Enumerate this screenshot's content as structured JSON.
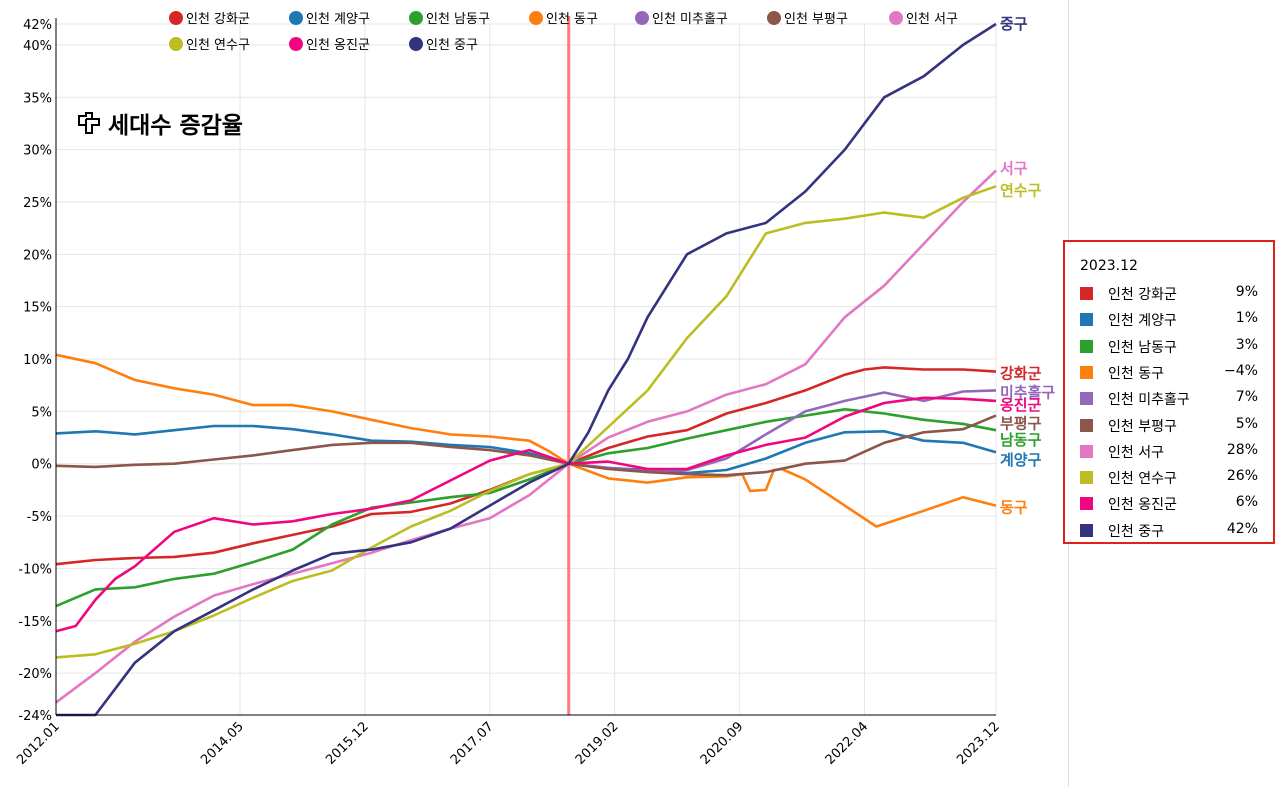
{
  "title": "세대수 증감율",
  "tooltip": {
    "date": "2023.12",
    "rows": [
      {
        "name": "인천 강화군",
        "value": "9%",
        "color": "#d62728"
      },
      {
        "name": "인천 계양구",
        "value": "1%",
        "color": "#1f77b4"
      },
      {
        "name": "인천 남동구",
        "value": "3%",
        "color": "#2ca02c"
      },
      {
        "name": "인천 동구",
        "value": "−4%",
        "color": "#ff7f0e"
      },
      {
        "name": "인천 미추홀구",
        "value": "7%",
        "color": "#9467bd"
      },
      {
        "name": "인천 부평구",
        "value": "5%",
        "color": "#8c564b"
      },
      {
        "name": "인천 서구",
        "value": "28%",
        "color": "#e377c2"
      },
      {
        "name": "인천 연수구",
        "value": "26%",
        "color": "#bcbd22"
      },
      {
        "name": "인천 옹진군",
        "value": "6%",
        "color": "#f0067f"
      },
      {
        "name": "인천 중구",
        "value": "42%",
        "color": "#333380"
      }
    ]
  },
  "chart_data": {
    "type": "line",
    "title": "세대수 증감율",
    "xlabel": "",
    "ylabel": "",
    "x_range": [
      2012.0,
      2023.917
    ],
    "ylim": [
      -24,
      42
    ],
    "grid": true,
    "reference_line": {
      "x": 2018.5,
      "color": "#ff7b7b"
    },
    "y_ticks": [
      -24,
      -20,
      -15,
      -10,
      -5,
      0,
      5,
      10,
      15,
      20,
      25,
      30,
      35,
      40,
      42
    ],
    "y_tick_labels": [
      "-24%",
      "-20%",
      "-15%",
      "-10%",
      "-5%",
      "0%",
      "5%",
      "10%",
      "15%",
      "20%",
      "25%",
      "30%",
      "35%",
      "40%",
      "42%"
    ],
    "x_ticks": [
      2012.0,
      2014.333,
      2015.917,
      2017.5,
      2019.083,
      2020.667,
      2022.25,
      2023.917
    ],
    "x_tick_labels": [
      "2012.01",
      "2014.05",
      "2015.12",
      "2017.07",
      "2019.02",
      "2020.09",
      "2022.04",
      "2023.12"
    ],
    "legend_position": "top",
    "series": [
      {
        "name": "인천 강화군",
        "label": "강화군",
        "color": "#d62728",
        "x": [
          2012.0,
          2012.5,
          2013.0,
          2013.5,
          2014.0,
          2014.5,
          2015.0,
          2015.5,
          2016.0,
          2016.5,
          2017.0,
          2017.5,
          2018.0,
          2018.5,
          2019.0,
          2019.5,
          2020.0,
          2020.5,
          2021.0,
          2021.5,
          2022.0,
          2022.25,
          2022.5,
          2023.0,
          2023.5,
          2023.917
        ],
        "y": [
          -9.6,
          -9.2,
          -9.0,
          -8.9,
          -8.5,
          -7.6,
          -6.8,
          -6.0,
          -4.8,
          -4.6,
          -3.8,
          -2.5,
          -1.0,
          0,
          1.5,
          2.6,
          3.2,
          4.8,
          5.8,
          7.0,
          8.5,
          9.0,
          9.2,
          9.0,
          9.0,
          8.8
        ]
      },
      {
        "name": "인천 계양구",
        "label": "계양구",
        "color": "#1f77b4",
        "x": [
          2012.0,
          2012.5,
          2013.0,
          2013.5,
          2014.0,
          2014.5,
          2015.0,
          2015.5,
          2016.0,
          2016.5,
          2017.0,
          2017.5,
          2018.0,
          2018.5,
          2019.0,
          2019.5,
          2020.0,
          2020.5,
          2021.0,
          2021.5,
          2022.0,
          2022.5,
          2023.0,
          2023.5,
          2023.917
        ],
        "y": [
          2.9,
          3.1,
          2.8,
          3.2,
          3.6,
          3.6,
          3.3,
          2.8,
          2.2,
          2.1,
          1.8,
          1.6,
          1.0,
          0,
          -0.4,
          -0.6,
          -0.9,
          -0.6,
          0.5,
          2.0,
          3.0,
          3.1,
          2.2,
          2.0,
          1.1
        ]
      },
      {
        "name": "인천 남동구",
        "label": "남동구",
        "color": "#2ca02c",
        "x": [
          2012.0,
          2012.5,
          2013.0,
          2013.5,
          2014.0,
          2014.5,
          2015.0,
          2015.5,
          2016.0,
          2016.5,
          2017.0,
          2017.5,
          2018.0,
          2018.5,
          2019.0,
          2019.5,
          2020.0,
          2020.5,
          2021.0,
          2021.5,
          2022.0,
          2022.5,
          2023.0,
          2023.5,
          2023.917
        ],
        "y": [
          -13.6,
          -12.0,
          -11.8,
          -11.0,
          -10.5,
          -9.4,
          -8.2,
          -5.8,
          -4.2,
          -3.7,
          -3.2,
          -2.8,
          -1.5,
          0,
          1.0,
          1.5,
          2.4,
          3.2,
          4.0,
          4.6,
          5.2,
          4.8,
          4.2,
          3.8,
          3.2
        ]
      },
      {
        "name": "인천 동구",
        "label": "동구",
        "color": "#ff7f0e",
        "x": [
          2012.0,
          2012.5,
          2013.0,
          2013.5,
          2014.0,
          2014.5,
          2015.0,
          2015.5,
          2016.0,
          2016.5,
          2017.0,
          2017.5,
          2018.0,
          2018.25,
          2018.5,
          2019.0,
          2019.5,
          2020.0,
          2020.5,
          2020.7,
          2020.8,
          2021.0,
          2021.1,
          2021.2,
          2021.5,
          2022.0,
          2022.4,
          2022.6,
          2023.0,
          2023.5,
          2023.917
        ],
        "y": [
          10.4,
          9.6,
          8.0,
          7.2,
          6.6,
          5.6,
          5.6,
          5.0,
          4.2,
          3.4,
          2.8,
          2.6,
          2.2,
          1.2,
          0,
          -1.4,
          -1.8,
          -1.3,
          -1.2,
          -1.0,
          -2.6,
          -2.5,
          -0.6,
          -0.5,
          -1.5,
          -4.0,
          -6.0,
          -5.5,
          -4.5,
          -3.2,
          -4.0
        ]
      },
      {
        "name": "인천 미추홀구",
        "label": "미추홀구",
        "color": "#9467bd",
        "x": [
          2018.5,
          2019.0,
          2019.5,
          2020.0,
          2020.5,
          2021.0,
          2021.5,
          2022.0,
          2022.5,
          2023.0,
          2023.5,
          2023.917
        ],
        "y": [
          0,
          -0.4,
          -0.7,
          -0.6,
          0.5,
          2.8,
          5.0,
          6.0,
          6.8,
          6.0,
          6.9,
          7.0
        ]
      },
      {
        "name": "인천 부평구",
        "label": "부평구",
        "color": "#8c564b",
        "x": [
          2012.0,
          2012.5,
          2013.0,
          2013.5,
          2014.0,
          2014.5,
          2015.0,
          2015.5,
          2016.0,
          2016.5,
          2017.0,
          2017.5,
          2018.0,
          2018.5,
          2019.0,
          2019.5,
          2020.0,
          2020.5,
          2021.0,
          2021.5,
          2022.0,
          2022.5,
          2023.0,
          2023.5,
          2023.917
        ],
        "y": [
          -0.2,
          -0.3,
          -0.1,
          0.0,
          0.4,
          0.8,
          1.3,
          1.8,
          2.0,
          2.0,
          1.6,
          1.3,
          0.8,
          0,
          -0.5,
          -0.8,
          -1.0,
          -1.1,
          -0.8,
          0.0,
          0.3,
          2.0,
          3.0,
          3.3,
          4.6
        ]
      },
      {
        "name": "인천 서구",
        "label": "서구",
        "color": "#e377c2",
        "x": [
          2012.0,
          2012.5,
          2013.0,
          2013.5,
          2014.0,
          2014.5,
          2015.0,
          2015.5,
          2016.0,
          2016.5,
          2017.0,
          2017.5,
          2018.0,
          2018.5,
          2019.0,
          2019.5,
          2020.0,
          2020.5,
          2021.0,
          2021.5,
          2022.0,
          2022.5,
          2023.0,
          2023.5,
          2023.917
        ],
        "y": [
          -22.8,
          -20.0,
          -17.0,
          -14.6,
          -12.6,
          -11.5,
          -10.5,
          -9.5,
          -8.5,
          -7.3,
          -6.2,
          -5.2,
          -3.0,
          0,
          2.5,
          4.0,
          5.0,
          6.6,
          7.6,
          9.5,
          14.0,
          17.0,
          21.0,
          25.0,
          28.0
        ]
      },
      {
        "name": "인천 연수구",
        "label": "연수구",
        "color": "#bcbd22",
        "x": [
          2012.0,
          2012.5,
          2013.0,
          2013.5,
          2014.0,
          2014.5,
          2015.0,
          2015.5,
          2016.0,
          2016.5,
          2017.0,
          2017.5,
          2018.0,
          2018.5,
          2019.0,
          2019.5,
          2020.0,
          2020.5,
          2021.0,
          2021.5,
          2022.0,
          2022.5,
          2023.0,
          2023.5,
          2023.917
        ],
        "y": [
          -18.5,
          -18.2,
          -17.2,
          -16.0,
          -14.5,
          -12.8,
          -11.2,
          -10.2,
          -8.0,
          -6.0,
          -4.5,
          -2.6,
          -1.0,
          0,
          3.5,
          7.0,
          12.0,
          16.0,
          22.0,
          23.0,
          23.4,
          24.0,
          23.5,
          25.4,
          26.5
        ]
      },
      {
        "name": "인천 옹진군",
        "label": "옹진군",
        "color": "#f0067f",
        "x": [
          2012.0,
          2012.25,
          2012.5,
          2012.75,
          2013.0,
          2013.5,
          2014.0,
          2014.5,
          2015.0,
          2015.5,
          2016.0,
          2016.5,
          2017.0,
          2017.5,
          2018.0,
          2018.5,
          2019.0,
          2019.5,
          2020.0,
          2020.5,
          2021.0,
          2021.5,
          2022.0,
          2022.5,
          2023.0,
          2023.5,
          2023.917
        ],
        "y": [
          -16.0,
          -15.5,
          -13.0,
          -11.0,
          -9.8,
          -6.5,
          -5.2,
          -5.8,
          -5.5,
          -4.8,
          -4.3,
          -3.5,
          -1.6,
          0.3,
          1.3,
          0,
          0.2,
          -0.5,
          -0.5,
          0.8,
          1.8,
          2.5,
          4.5,
          5.8,
          6.3,
          6.2,
          6.0
        ]
      },
      {
        "name": "인천 중구",
        "label": "중구",
        "color": "#333380",
        "x": [
          2012.0,
          2012.5,
          2012.75,
          2013.0,
          2013.5,
          2014.0,
          2014.5,
          2015.0,
          2015.5,
          2016.0,
          2016.5,
          2017.0,
          2017.5,
          2018.0,
          2018.5,
          2018.75,
          2019.0,
          2019.25,
          2019.5,
          2019.75,
          2020.0,
          2020.5,
          2021.0,
          2021.5,
          2022.0,
          2022.5,
          2023.0,
          2023.5,
          2023.917
        ],
        "y": [
          -24.0,
          -24.0,
          -21.5,
          -19.0,
          -16.0,
          -14.0,
          -12.0,
          -10.2,
          -8.6,
          -8.2,
          -7.5,
          -6.2,
          -4.0,
          -1.8,
          0,
          3.0,
          7.0,
          10.0,
          14.0,
          17.0,
          20.0,
          22.0,
          23.0,
          26.0,
          30.0,
          35.0,
          37.0,
          40.0,
          42.0
        ]
      }
    ]
  }
}
